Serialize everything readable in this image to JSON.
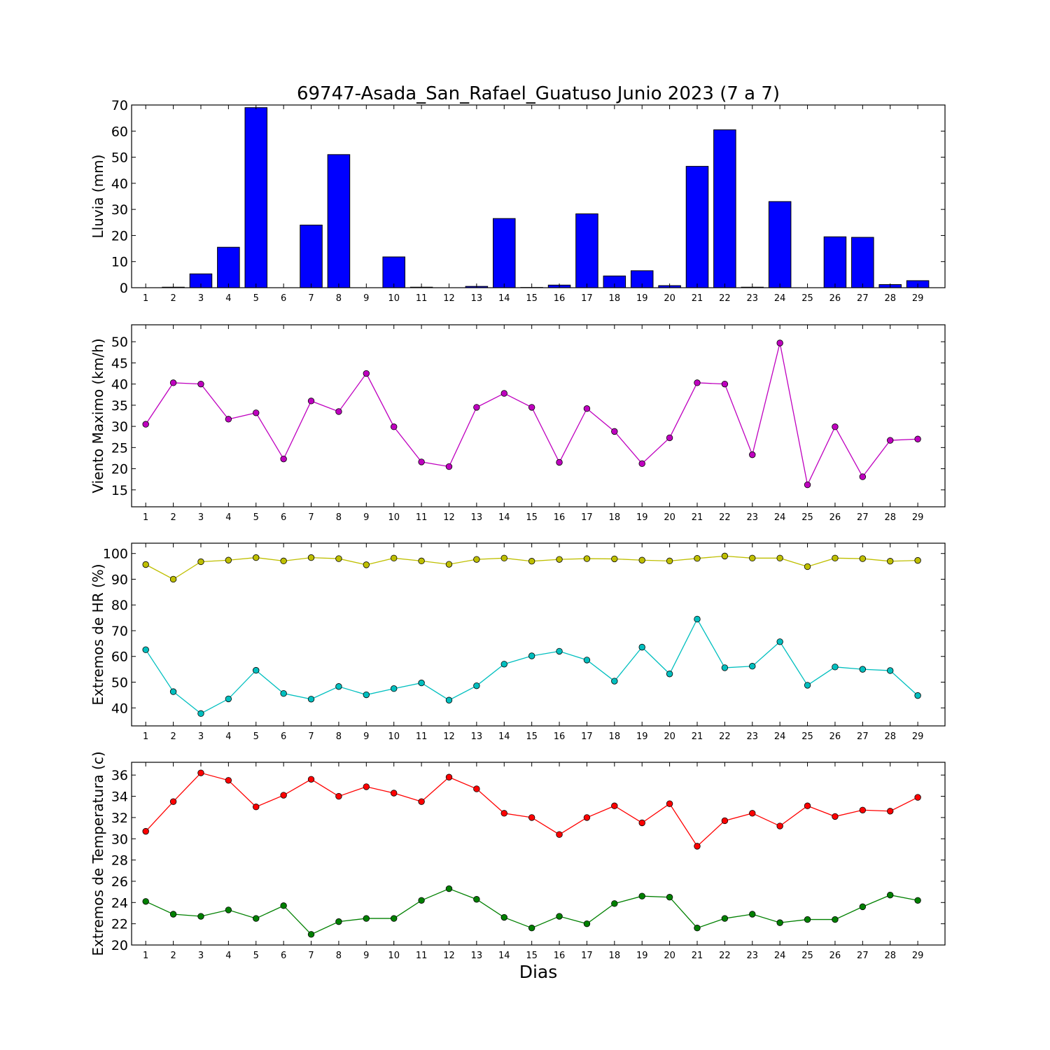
{
  "figure": {
    "title": "69747-Asada_San_Rafael_Guatuso Junio 2023  (7 a 7)",
    "xlabel": "Dias"
  },
  "chart_data": [
    {
      "type": "bar",
      "ylabel": "Lluvia (mm)",
      "categories": [
        1,
        2,
        3,
        4,
        5,
        6,
        7,
        8,
        9,
        10,
        11,
        12,
        13,
        14,
        15,
        16,
        17,
        18,
        19,
        20,
        21,
        22,
        23,
        24,
        25,
        26,
        27,
        28,
        29
      ],
      "ylim": [
        0,
        70
      ],
      "yticks": [
        0,
        10,
        20,
        30,
        40,
        50,
        60,
        70
      ],
      "series": [
        {
          "color": "#0000ff",
          "values": [
            0,
            0.2,
            5.3,
            15.5,
            69,
            0,
            24,
            51,
            0,
            11.8,
            0.2,
            0,
            0.5,
            26.5,
            0.1,
            1,
            28.3,
            4.5,
            6.5,
            0.8,
            46.5,
            60.5,
            0.2,
            33,
            0,
            19.5,
            19.3,
            1.2,
            2.7
          ]
        }
      ]
    },
    {
      "type": "line",
      "ylabel": "Viento Maximo (km/h)",
      "x": [
        1,
        2,
        3,
        4,
        5,
        6,
        7,
        8,
        9,
        10,
        11,
        12,
        13,
        14,
        15,
        16,
        17,
        18,
        19,
        20,
        21,
        22,
        23,
        24,
        25,
        26,
        27,
        28,
        29
      ],
      "ylim": [
        11,
        54
      ],
      "yticks": [
        15,
        20,
        25,
        30,
        35,
        40,
        45,
        50
      ],
      "series": [
        {
          "color": "#bf00bf",
          "values": [
            30.5,
            40.3,
            40,
            31.7,
            33.2,
            22.3,
            36,
            33.5,
            42.5,
            29.9,
            21.6,
            20.5,
            34.5,
            37.8,
            34.5,
            21.5,
            34.2,
            28.8,
            21.2,
            27.3,
            40.3,
            40,
            23.3,
            49.7,
            16.2,
            29.9,
            18.1,
            26.7,
            27
          ]
        }
      ]
    },
    {
      "type": "line",
      "ylabel": "Extremos de HR (%)",
      "x": [
        1,
        2,
        3,
        4,
        5,
        6,
        7,
        8,
        9,
        10,
        11,
        12,
        13,
        14,
        15,
        16,
        17,
        18,
        19,
        20,
        21,
        22,
        23,
        24,
        25,
        26,
        27,
        28,
        29
      ],
      "ylim": [
        33,
        104
      ],
      "yticks": [
        40,
        50,
        60,
        70,
        80,
        90,
        100
      ],
      "series": [
        {
          "color": "#bfbf00",
          "values": [
            95.7,
            90,
            96.8,
            97.4,
            98.4,
            97.1,
            98.4,
            98,
            95.6,
            98.2,
            97.1,
            95.8,
            97.7,
            98.2,
            97,
            97.7,
            98,
            97.9,
            97.4,
            97.1,
            98.1,
            99,
            98.2,
            98.2,
            94.9,
            98.2,
            98,
            97,
            97.3
          ]
        },
        {
          "color": "#00bfbf",
          "values": [
            62.6,
            46.3,
            37.8,
            43.5,
            54.6,
            45.6,
            43.4,
            48.3,
            45.1,
            47.5,
            49.7,
            43,
            48.6,
            57,
            60.2,
            62,
            58.6,
            50.4,
            63.6,
            53.2,
            74.5,
            55.6,
            56.2,
            65.7,
            48.8,
            55.9,
            55,
            54.5,
            44.8
          ]
        }
      ]
    },
    {
      "type": "line",
      "ylabel": "Extremos de Temperatura (c)",
      "x": [
        1,
        2,
        3,
        4,
        5,
        6,
        7,
        8,
        9,
        10,
        11,
        12,
        13,
        14,
        15,
        16,
        17,
        18,
        19,
        20,
        21,
        22,
        23,
        24,
        25,
        26,
        27,
        28,
        29
      ],
      "ylim": [
        20,
        37.2
      ],
      "yticks": [
        20,
        22,
        24,
        26,
        28,
        30,
        32,
        34,
        36
      ],
      "series": [
        {
          "color": "#ff0000",
          "values": [
            30.7,
            33.5,
            36.2,
            35.5,
            33,
            34.1,
            35.6,
            34,
            34.9,
            34.3,
            33.5,
            35.8,
            34.7,
            32.4,
            32,
            30.4,
            32,
            33.1,
            31.5,
            33.3,
            29.3,
            31.7,
            32.4,
            31.2,
            33.1,
            32.1,
            32.7,
            32.6,
            33.9
          ]
        },
        {
          "color": "#008000",
          "values": [
            24.1,
            22.9,
            22.7,
            23.3,
            22.5,
            23.7,
            21,
            22.2,
            22.5,
            22.5,
            24.2,
            25.3,
            24.3,
            22.6,
            21.6,
            22.7,
            22,
            23.9,
            24.6,
            24.5,
            21.6,
            22.5,
            22.9,
            22.1,
            22.4,
            22.4,
            23.6,
            24.7,
            24.2
          ]
        }
      ]
    }
  ]
}
